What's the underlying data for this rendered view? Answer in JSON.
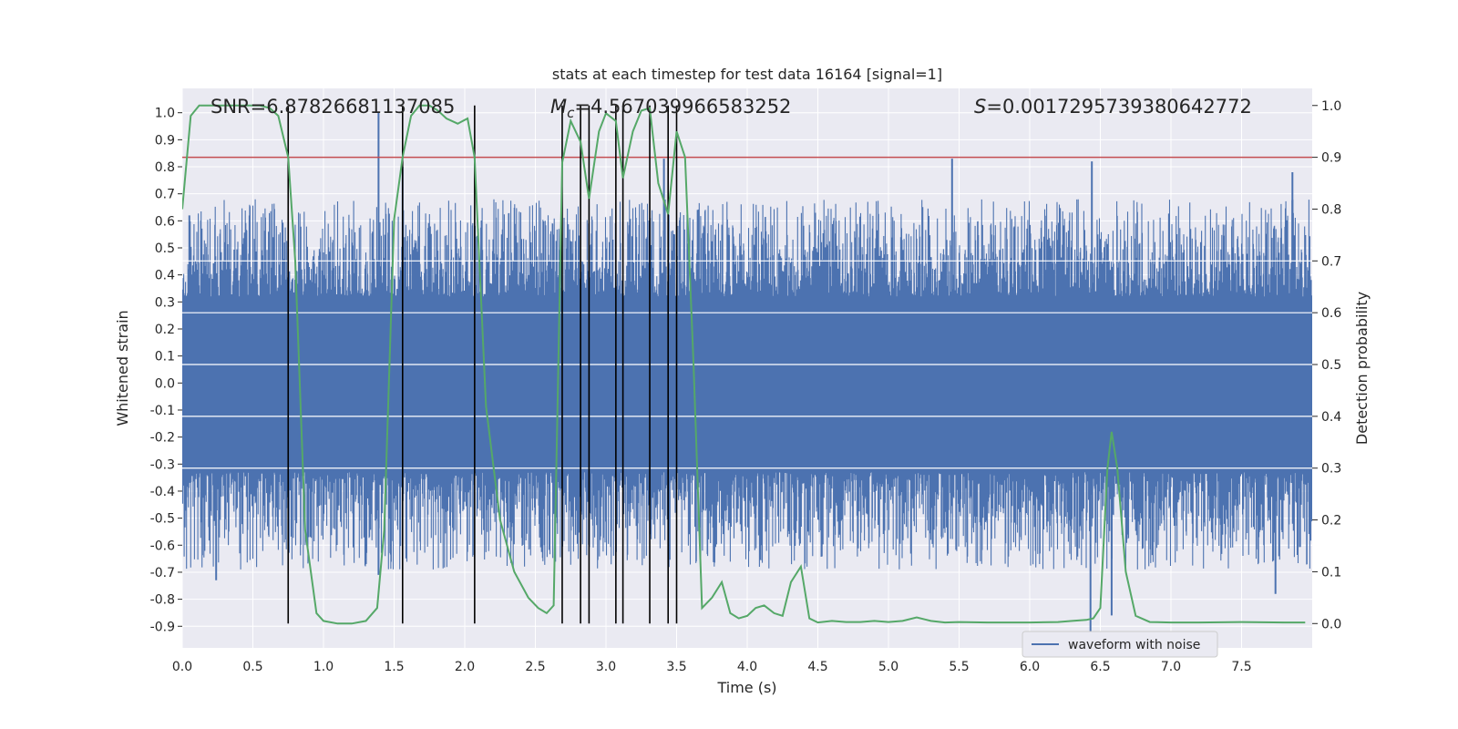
{
  "chart_data": {
    "type": "line",
    "title": "stats at each timestep for test data 16164 [signal=1]",
    "xlabel": "Time (s)",
    "ylabel": "Whitened strain",
    "y2label": "Detection probability",
    "xlim": [
      0.0,
      8.0
    ],
    "ylim": [
      -0.98,
      1.09
    ],
    "y2lim": [
      -0.047,
      1.033
    ],
    "xticks": [
      "0.0",
      "0.5",
      "1.0",
      "1.5",
      "2.0",
      "2.5",
      "3.0",
      "3.5",
      "4.0",
      "4.5",
      "5.0",
      "5.5",
      "6.0",
      "6.5",
      "7.0",
      "7.5"
    ],
    "yticks": [
      "1.0",
      "0.9",
      "0.8",
      "0.7",
      "0.6",
      "0.5",
      "0.4",
      "0.3",
      "0.2",
      "0.1",
      "0.0",
      "-0.1",
      "-0.2",
      "-0.3",
      "-0.4",
      "-0.5",
      "-0.6",
      "-0.7",
      "-0.8",
      "-0.9"
    ],
    "y2ticks": [
      "1.0",
      "0.9",
      "0.8",
      "0.7",
      "0.6",
      "0.5",
      "0.4",
      "0.3",
      "0.2",
      "0.1",
      "0.0"
    ],
    "stats": {
      "snr": "SNR=6.87826681137085",
      "mc_symbol": "M",
      "mc_sub": "c",
      "mc_value": "=4.567039966583252",
      "s_symbol": "S",
      "s_value": "=0.0017295739380642772"
    },
    "threshold": {
      "probability": 0.9,
      "color": "#c44e52"
    },
    "detection_times": [
      0.75,
      1.56,
      2.07,
      2.69,
      2.82,
      2.88,
      3.07,
      3.12,
      3.31,
      3.44,
      3.5
    ],
    "waveform": {
      "name": "waveform with noise",
      "color": "#4c72b0",
      "band_typical": [
        -0.33,
        0.32
      ],
      "notable_peaks": [
        {
          "t": 0.05,
          "v": 0.62
        },
        {
          "t": 1.39,
          "v": 1.0
        },
        {
          "t": 1.56,
          "v": 0.8
        },
        {
          "t": 3.41,
          "v": 0.83
        },
        {
          "t": 5.45,
          "v": 0.83
        },
        {
          "t": 6.44,
          "v": 0.82
        },
        {
          "t": 7.86,
          "v": 0.78
        },
        {
          "t": 6.43,
          "v": -0.95
        },
        {
          "t": 6.58,
          "v": -0.86
        },
        {
          "t": 1.39,
          "v": -0.71
        },
        {
          "t": 0.24,
          "v": -0.73
        },
        {
          "t": 7.74,
          "v": -0.78
        }
      ]
    },
    "probability_series": {
      "name": "detection probability",
      "color": "#55a868",
      "t": [
        0.0,
        0.06,
        0.12,
        0.25,
        0.4,
        0.55,
        0.62,
        0.68,
        0.75,
        0.8,
        0.87,
        0.95,
        1.0,
        1.1,
        1.2,
        1.3,
        1.38,
        1.43,
        1.5,
        1.56,
        1.62,
        1.68,
        1.75,
        1.81,
        1.87,
        1.95,
        2.02,
        2.07,
        2.15,
        2.25,
        2.35,
        2.45,
        2.52,
        2.58,
        2.63,
        2.69,
        2.75,
        2.82,
        2.88,
        2.95,
        3.0,
        3.07,
        3.12,
        3.19,
        3.25,
        3.31,
        3.37,
        3.44,
        3.5,
        3.56,
        3.62,
        3.68,
        3.75,
        3.82,
        3.88,
        3.94,
        4.0,
        4.06,
        4.12,
        4.19,
        4.25,
        4.31,
        4.38,
        4.44,
        4.5,
        4.6,
        4.7,
        4.8,
        4.9,
        5.0,
        5.1,
        5.2,
        5.3,
        5.4,
        5.5,
        5.7,
        6.0,
        6.2,
        6.3,
        6.4,
        6.45,
        6.5,
        6.55,
        6.58,
        6.62,
        6.68,
        6.75,
        6.85,
        7.0,
        7.2,
        7.5,
        7.8,
        7.95
      ],
      "p": [
        0.8,
        0.98,
        1.0,
        1.0,
        1.0,
        1.0,
        0.995,
        0.98,
        0.9,
        0.7,
        0.18,
        0.02,
        0.005,
        0.0,
        0.0,
        0.005,
        0.03,
        0.18,
        0.78,
        0.9,
        0.98,
        1.0,
        1.0,
        0.99,
        0.975,
        0.965,
        0.975,
        0.9,
        0.42,
        0.2,
        0.1,
        0.05,
        0.03,
        0.02,
        0.035,
        0.89,
        0.97,
        0.93,
        0.82,
        0.95,
        0.985,
        0.97,
        0.86,
        0.95,
        0.99,
        0.995,
        0.85,
        0.79,
        0.95,
        0.9,
        0.5,
        0.03,
        0.05,
        0.08,
        0.02,
        0.01,
        0.015,
        0.03,
        0.035,
        0.02,
        0.015,
        0.08,
        0.11,
        0.01,
        0.002,
        0.005,
        0.003,
        0.003,
        0.005,
        0.003,
        0.005,
        0.012,
        0.005,
        0.002,
        0.003,
        0.002,
        0.002,
        0.003,
        0.005,
        0.007,
        0.01,
        0.03,
        0.3,
        0.37,
        0.3,
        0.1,
        0.015,
        0.003,
        0.002,
        0.002,
        0.003,
        0.002,
        0.002
      ]
    }
  }
}
